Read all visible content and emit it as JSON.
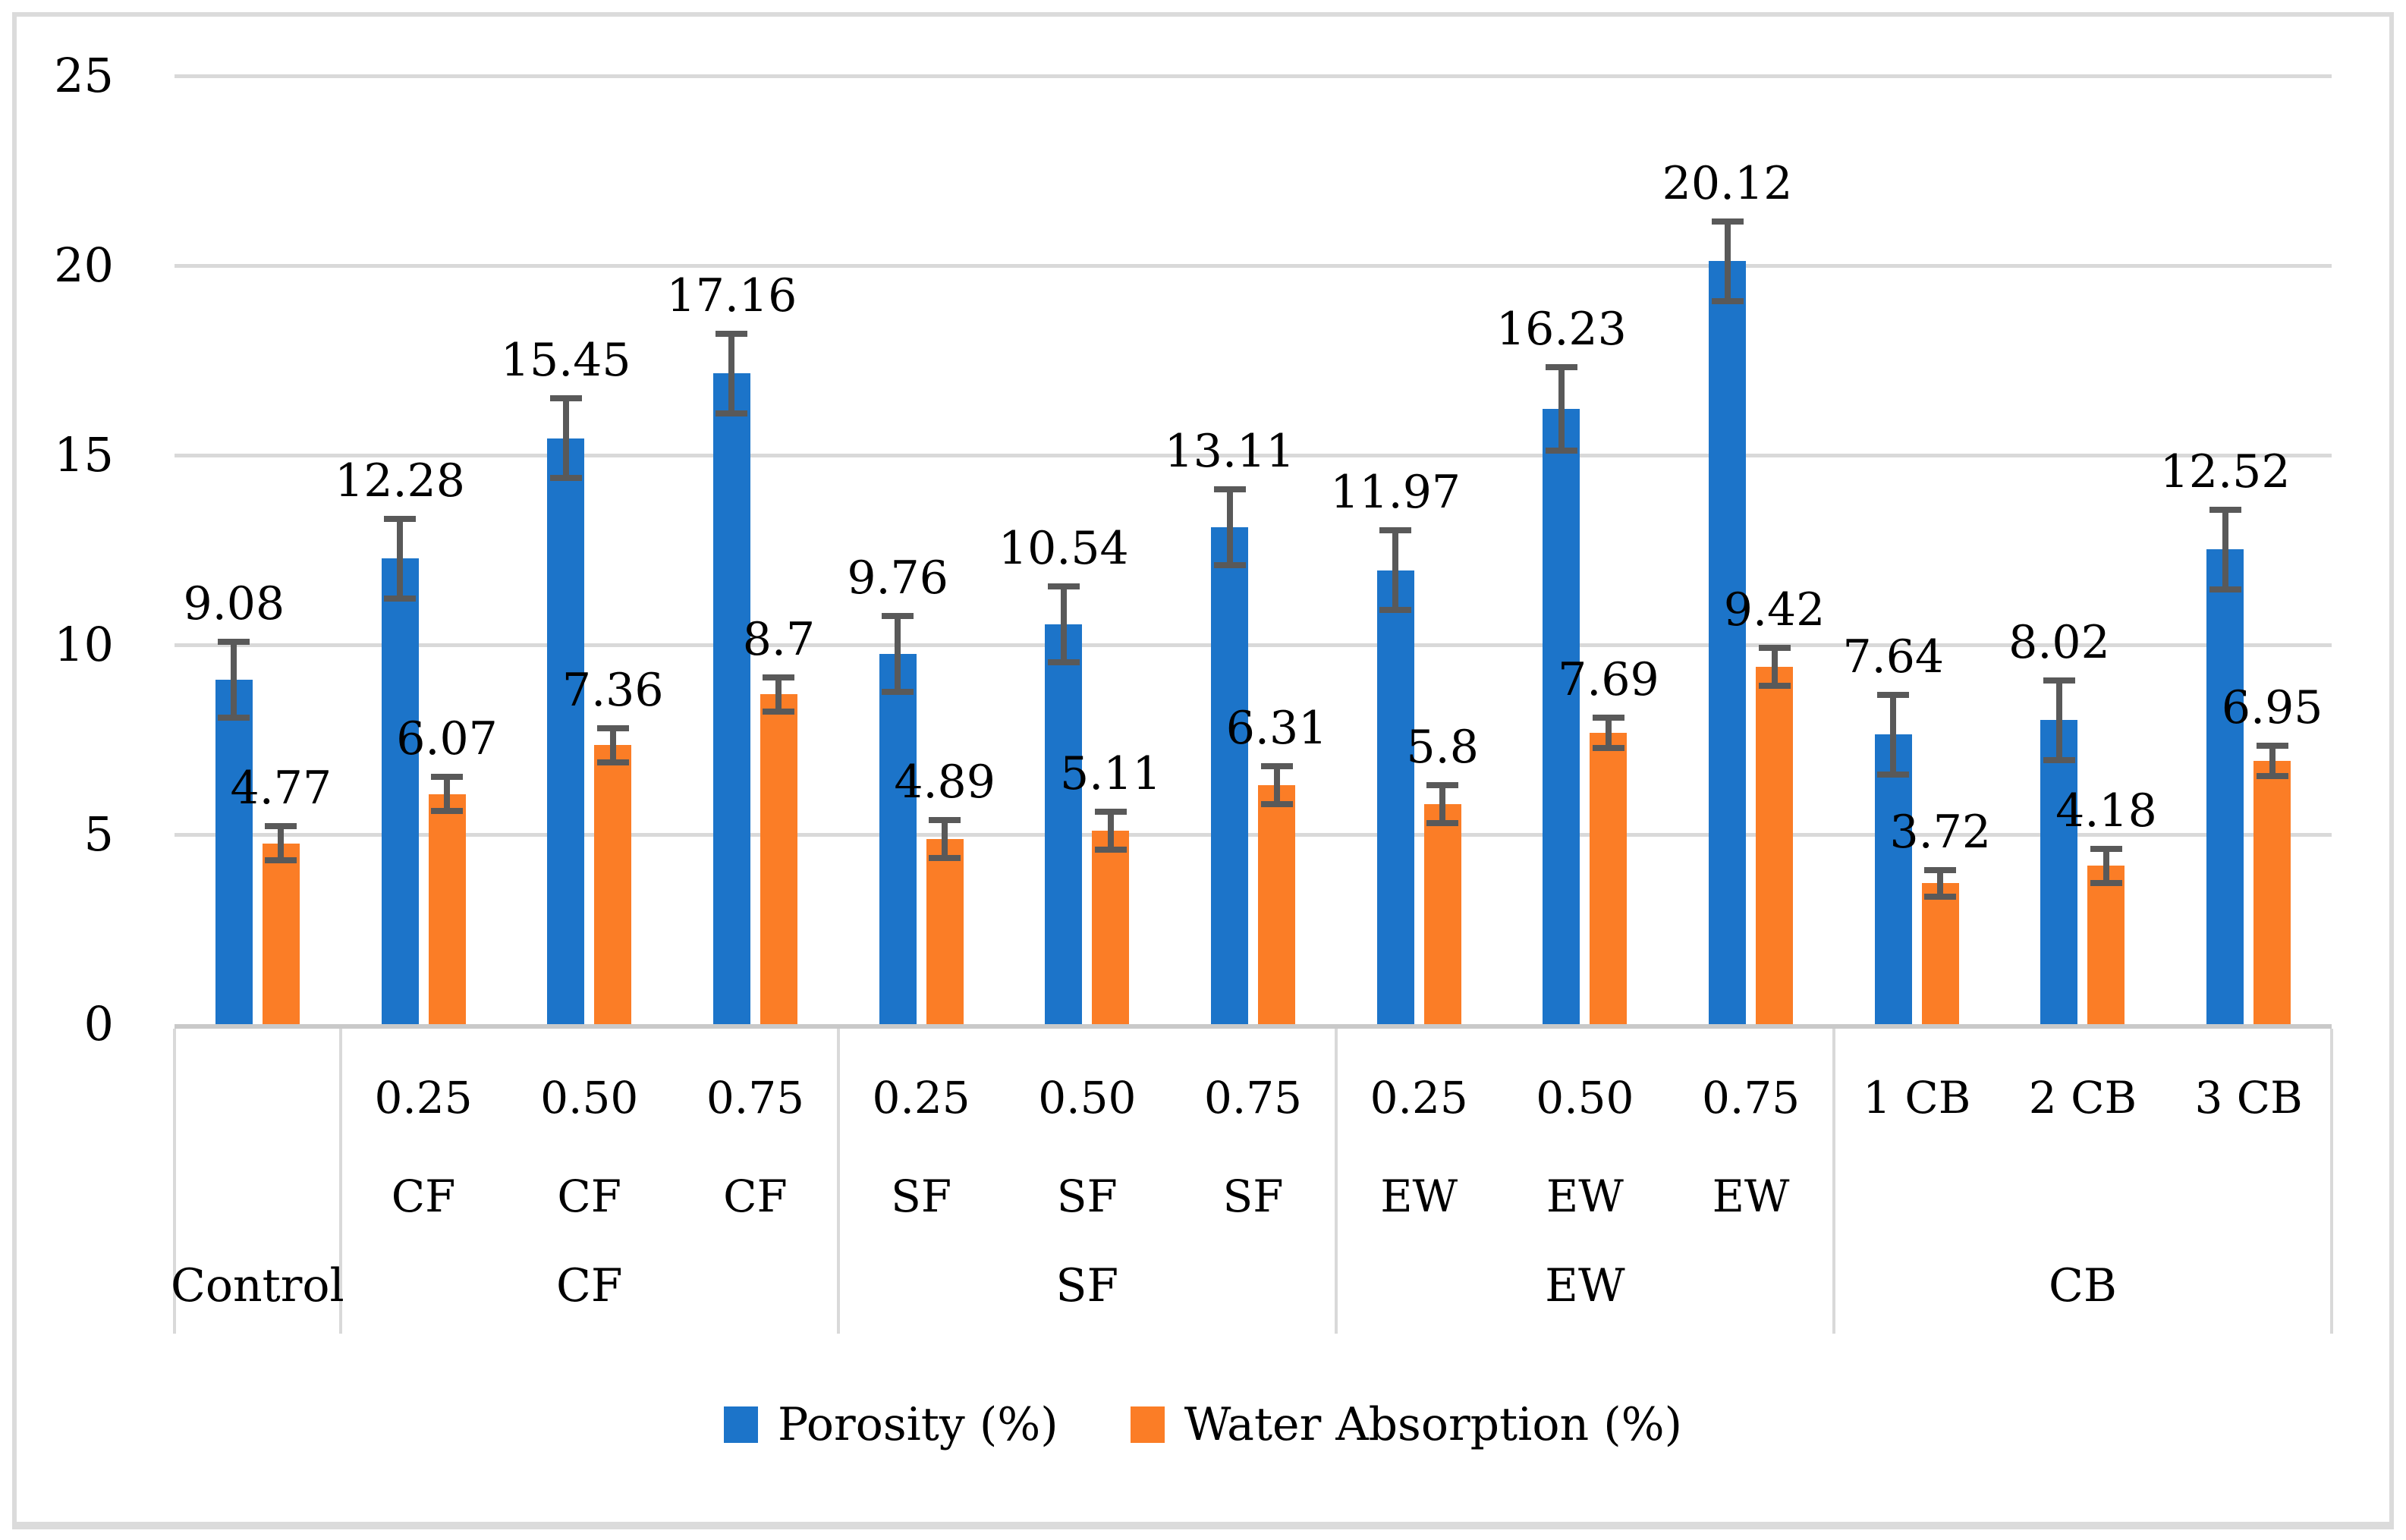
{
  "chart_data": {
    "type": "bar",
    "title": "",
    "xlabel": "",
    "ylabel": "",
    "ylim": [
      0,
      25
    ],
    "y_ticks": [
      "0",
      "5",
      "10",
      "15",
      "20",
      "25"
    ],
    "grid": true,
    "legend_position": "bottom",
    "categories": [
      "Control",
      "0.25 CF",
      "0.50 CF",
      "0.75 CF",
      "0.25 SF",
      "0.50 SF",
      "0.75 SF",
      "0.25 EW",
      "0.50 EW",
      "0.75 EW",
      "1 CB",
      "2 CB",
      "3 CB"
    ],
    "category_tick_lines": [
      [],
      [
        "0.25",
        "CF"
      ],
      [
        "0.50",
        "CF"
      ],
      [
        "0.75",
        "CF"
      ],
      [
        "0.25",
        "SF"
      ],
      [
        "0.50",
        "SF"
      ],
      [
        "0.75",
        "SF"
      ],
      [
        "0.25",
        "EW"
      ],
      [
        "0.50",
        "EW"
      ],
      [
        "0.75",
        "EW"
      ],
      [
        "1 CB"
      ],
      [
        "2 CB"
      ],
      [
        "3 CB"
      ]
    ],
    "groups": [
      {
        "label": "Control",
        "span": 1
      },
      {
        "label": "CF",
        "span": 3
      },
      {
        "label": "SF",
        "span": 3
      },
      {
        "label": "EW",
        "span": 3
      },
      {
        "label": "CB",
        "span": 3
      }
    ],
    "series": [
      {
        "name": "Porosity (%)",
        "color": "#1C74C9",
        "values": [
          9.08,
          12.28,
          15.45,
          17.16,
          9.76,
          10.54,
          13.11,
          11.97,
          16.23,
          20.12,
          7.64,
          8.02,
          12.52
        ],
        "labels": [
          "9.08",
          "12.28",
          "15.45",
          "17.16",
          "9.76",
          "10.54",
          "13.11",
          "11.97",
          "16.23",
          "20.12",
          "7.64",
          "8.02",
          "12.52"
        ],
        "errors": [
          1.0,
          1.05,
          1.05,
          1.05,
          1.0,
          1.0,
          1.0,
          1.05,
          1.1,
          1.05,
          1.05,
          1.05,
          1.05
        ]
      },
      {
        "name": "Water Absorption (%)",
        "color": "#FB7D26",
        "values": [
          4.77,
          6.07,
          7.36,
          8.7,
          4.89,
          5.11,
          6.31,
          5.8,
          7.69,
          9.42,
          3.72,
          4.18,
          6.95
        ],
        "labels": [
          "4.77",
          "6.07",
          "7.36",
          "8.7",
          "4.89",
          "5.11",
          "6.31",
          "5.8",
          "7.69",
          "9.42",
          "3.72",
          "4.18",
          "6.95"
        ],
        "errors": [
          0.45,
          0.45,
          0.45,
          0.45,
          0.5,
          0.5,
          0.5,
          0.5,
          0.4,
          0.5,
          0.35,
          0.45,
          0.4
        ]
      }
    ],
    "error_bar_color": "#595959",
    "gridline_color": "#D9D9D9",
    "axis_line_color": "#C9C9C9",
    "frame_color": "#DBDBDB",
    "background": "#FFFFFF"
  }
}
